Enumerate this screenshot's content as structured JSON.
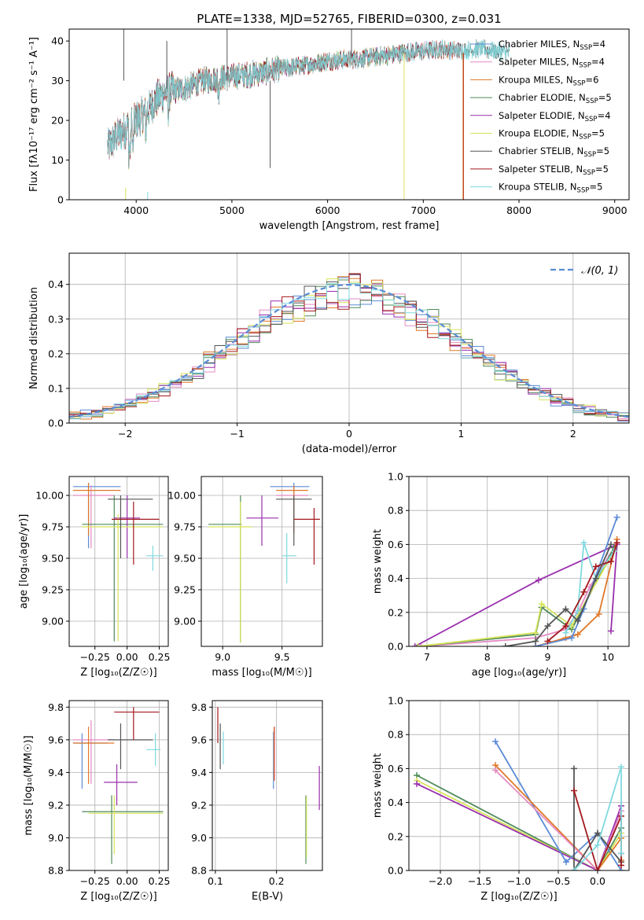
{
  "colors": {
    "chabrier_miles": "#5b8bd6",
    "salpeter_miles": "#e58bc3",
    "kroupa_miles": "#e07828",
    "chabrier_elodie": "#4f8a5a",
    "salpeter_elodie": "#9a2fae",
    "kroupa_elodie": "#d7e35a",
    "chabrier_stelib": "#555555",
    "salpeter_stelib": "#a3191e",
    "kroupa_stelib": "#7fd9de"
  },
  "chart_data": [
    {
      "id": "spectrum",
      "type": "line",
      "title": "PLATE=1338, MJD=52765, FIBERID=0300, z=0.031",
      "xlabel": "wavelength [Angstrom, rest frame]",
      "ylabel": "Flux [fλ10⁻¹⁷ erg cm⁻² s⁻¹ A⁻¹]",
      "xlim": [
        3300,
        9150
      ],
      "ylim": [
        0,
        43
      ],
      "xticks": [
        "4000",
        "5000",
        "6000",
        "7000",
        "8000",
        "9000"
      ],
      "yticks": [
        "0",
        "10",
        "20",
        "30",
        "40"
      ],
      "legend_position": "upper-right",
      "legend": [
        {
          "base": "Chabrier MILES, N",
          "sub": "SSP",
          "suffix": "=4",
          "color_key": "chabrier_miles"
        },
        {
          "base": "Salpeter MILES, N",
          "sub": "SSP",
          "suffix": "=4",
          "color_key": "salpeter_miles"
        },
        {
          "base": "Kroupa MILES, N",
          "sub": "SSP",
          "suffix": "=6",
          "color_key": "kroupa_miles"
        },
        {
          "base": "Chabrier ELODIE, N",
          "sub": "SSP",
          "suffix": "=5",
          "color_key": "chabrier_elodie"
        },
        {
          "base": "Salpeter ELODIE, N",
          "sub": "SSP",
          "suffix": "=4",
          "color_key": "salpeter_elodie"
        },
        {
          "base": "Kroupa ELODIE, N",
          "sub": "SSP",
          "suffix": "=5",
          "color_key": "kroupa_elodie"
        },
        {
          "base": "Chabrier STELIB, N",
          "sub": "SSP",
          "suffix": "=5",
          "color_key": "chabrier_stelib"
        },
        {
          "base": "Salpeter STELIB, N",
          "sub": "SSP",
          "suffix": "=5",
          "color_key": "salpeter_stelib"
        },
        {
          "base": "Kroupa STELIB, N",
          "sub": "SSP",
          "suffix": "=5",
          "color_key": "kroupa_stelib"
        }
      ],
      "continuum": {
        "x": [
          3700,
          3800,
          3900,
          4000,
          4100,
          4200,
          4300,
          4500,
          4700,
          5000,
          5300,
          5500,
          5800,
          6000,
          6300,
          6500,
          6800,
          7000,
          7200,
          7400,
          7600,
          7900
        ],
        "y": [
          13,
          16,
          18,
          20,
          22,
          25,
          27,
          28,
          30,
          31,
          32,
          33,
          34,
          35,
          35.5,
          36,
          37,
          37.5,
          38,
          37.5,
          38,
          37
        ]
      },
      "series_coverage": [
        {
          "color_key": "chabrier_miles",
          "x": [
            3700,
            7400
          ]
        },
        {
          "color_key": "salpeter_miles",
          "x": [
            3700,
            7400
          ]
        },
        {
          "color_key": "kroupa_miles",
          "x": [
            3700,
            7400
          ]
        },
        {
          "color_key": "chabrier_elodie",
          "x": [
            3900,
            6800
          ]
        },
        {
          "color_key": "salpeter_elodie",
          "x": [
            3900,
            6800
          ]
        },
        {
          "color_key": "kroupa_elodie",
          "x": [
            3900,
            6800
          ]
        },
        {
          "color_key": "chabrier_stelib",
          "x": [
            3700,
            7900
          ]
        },
        {
          "color_key": "salpeter_stelib",
          "x": [
            3700,
            7400
          ]
        },
        {
          "color_key": "kroupa_stelib",
          "x": [
            3700,
            7900
          ]
        }
      ]
    },
    {
      "id": "residuals",
      "type": "histogram",
      "xlabel": "(data-model)/error",
      "ylabel": "Normed distribution",
      "xlim": [
        -2.5,
        2.5
      ],
      "ylim": [
        0,
        0.49
      ],
      "xticks": [
        "−2",
        "−1",
        "0",
        "1",
        "2"
      ],
      "yticks": [
        "0.0",
        "0.1",
        "0.2",
        "0.3",
        "0.4"
      ],
      "legend_label": "𝒩(0, 1)",
      "legend_position": "upper-right",
      "bin_width": 0.1
    },
    {
      "id": "age_vs_z",
      "type": "errorbar",
      "xlabel": "Z [log₁₀(Z/Z☉)]",
      "ylabel": "age  [log₁₀(age/yr)]",
      "xlim": [
        -0.45,
        0.32
      ],
      "ylim": [
        8.8,
        10.15
      ],
      "xticks": [
        "−0.25",
        "0.00",
        "0.25"
      ],
      "yticks": [
        "9.00",
        "9.25",
        "9.50",
        "9.75",
        "10.00"
      ],
      "points": [
        {
          "k": "chabrier_miles",
          "x": -0.3,
          "xe": [
            -0.42,
            -0.05
          ],
          "y": 10.07,
          "ye": [
            9.58,
            10.1
          ]
        },
        {
          "k": "salpeter_miles",
          "x": -0.28,
          "xe": [
            -0.42,
            -0.1
          ],
          "y": 10.0,
          "ye": [
            9.58,
            10.08
          ]
        },
        {
          "k": "kroupa_miles",
          "x": -0.3,
          "xe": [
            -0.42,
            -0.05
          ],
          "y": 10.04,
          "ye": [
            9.68,
            10.1
          ]
        },
        {
          "k": "chabrier_elodie",
          "x": -0.1,
          "xe": [
            -0.35,
            0.28
          ],
          "y": 9.77,
          "ye": [
            8.84,
            10.0
          ]
        },
        {
          "k": "salpeter_elodie",
          "x": 0.0,
          "xe": [
            -0.1,
            0.1
          ],
          "y": 9.82,
          "ye": [
            9.5,
            10.0
          ]
        },
        {
          "k": "kroupa_elodie",
          "x": -0.07,
          "xe": [
            -0.35,
            0.28
          ],
          "y": 9.75,
          "ye": [
            8.84,
            9.85
          ]
        },
        {
          "k": "chabrier_stelib",
          "x": -0.05,
          "xe": [
            -0.15,
            0.2
          ],
          "y": 9.97,
          "ye": [
            9.5,
            10.0
          ]
        },
        {
          "k": "salpeter_stelib",
          "x": 0.05,
          "xe": [
            -0.12,
            0.25
          ],
          "y": 9.81,
          "ye": [
            9.45,
            9.95
          ]
        },
        {
          "k": "kroupa_stelib",
          "x": 0.2,
          "xe": [
            0.15,
            0.28
          ],
          "y": 9.52,
          "ye": [
            9.4,
            9.6
          ]
        }
      ]
    },
    {
      "id": "age_vs_mass",
      "type": "errorbar",
      "xlabel": "mass [log₁₀(M/M☉)]",
      "ylabel": "",
      "xlim": [
        8.82,
        9.84
      ],
      "ylim": [
        8.8,
        10.15
      ],
      "xticks": [
        "9.0",
        "9.5"
      ],
      "yticks": [
        "9.00",
        "9.25",
        "9.50",
        "9.75",
        "10.00"
      ],
      "points": [
        {
          "k": "chabrier_miles",
          "x": 9.6,
          "xe": [
            9.4,
            9.73
          ],
          "y": 10.07,
          "ye": [
            9.75,
            10.1
          ]
        },
        {
          "k": "salpeter_miles",
          "x": 9.6,
          "xe": [
            9.45,
            9.72
          ],
          "y": 10.0,
          "ye": [
            9.7,
            10.05
          ]
        },
        {
          "k": "kroupa_miles",
          "x": 9.6,
          "xe": [
            9.45,
            9.72
          ],
          "y": 10.04,
          "ye": [
            9.7,
            10.08
          ]
        },
        {
          "k": "chabrier_elodie",
          "x": 9.15,
          "xe": [
            8.88,
            9.16
          ],
          "y": 9.77,
          "ye": [
            8.83,
            10.0
          ]
        },
        {
          "k": "salpeter_elodie",
          "x": 9.33,
          "xe": [
            9.2,
            9.47
          ],
          "y": 9.82,
          "ye": [
            9.6,
            10.0
          ]
        },
        {
          "k": "kroupa_elodie",
          "x": 9.15,
          "xe": [
            8.88,
            9.25
          ],
          "y": 9.75,
          "ye": [
            8.83,
            9.95
          ]
        },
        {
          "k": "chabrier_stelib",
          "x": 9.6,
          "xe": [
            9.45,
            9.75
          ],
          "y": 9.97,
          "ye": [
            9.6,
            10.0
          ]
        },
        {
          "k": "salpeter_stelib",
          "x": 9.77,
          "xe": [
            9.6,
            9.82
          ],
          "y": 9.81,
          "ye": [
            9.45,
            9.9
          ]
        },
        {
          "k": "kroupa_stelib",
          "x": 9.54,
          "xe": [
            9.5,
            9.62
          ],
          "y": 9.52,
          "ye": [
            9.3,
            9.7
          ]
        }
      ]
    },
    {
      "id": "mass_weight_vs_age",
      "type": "line",
      "xlabel": "age  [log₁₀(age/yr)]",
      "ylabel": "mass weight",
      "xlim": [
        6.7,
        10.35
      ],
      "ylim": [
        0,
        1
      ],
      "xticks": [
        "7",
        "8",
        "9",
        "10"
      ],
      "yticks": [
        "0.0",
        "0.2",
        "0.4",
        "0.6",
        "0.8",
        "1.0"
      ],
      "series": [
        {
          "k": "salpeter_miles",
          "x": [
            6.9,
            8.8,
            9.3,
            9.5,
            9.7,
            10.1
          ],
          "y": [
            0.0,
            0.05,
            0.1,
            0.2,
            0.35,
            0.58
          ]
        },
        {
          "k": "salpeter_elodie",
          "x": [
            6.8,
            8.85,
            10.15,
            10.05
          ],
          "y": [
            0.0,
            0.39,
            0.6,
            0.09
          ]
        },
        {
          "k": "chabrier_elodie",
          "x": [
            6.85,
            8.8,
            8.9,
            9.4,
            10.1
          ],
          "y": [
            0.0,
            0.07,
            0.23,
            0.1,
            0.58
          ]
        },
        {
          "k": "kroupa_elodie",
          "x": [
            6.85,
            8.8,
            8.9,
            9.4,
            10.1
          ],
          "y": [
            0.0,
            0.08,
            0.25,
            0.12,
            0.56
          ]
        },
        {
          "k": "kroupa_miles",
          "x": [
            8.8,
            9.3,
            9.5,
            9.85,
            10.15
          ],
          "y": [
            0.0,
            0.05,
            0.07,
            0.19,
            0.63
          ]
        },
        {
          "k": "chabrier_miles",
          "x": [
            8.8,
            9.4,
            9.6,
            10.15
          ],
          "y": [
            0.0,
            0.05,
            0.22,
            0.76
          ]
        },
        {
          "k": "kroupa_stelib",
          "x": [
            9.3,
            9.5,
            9.6,
            9.8,
            10.1
          ],
          "y": [
            0.08,
            0.21,
            0.61,
            0.4,
            0.56
          ]
        },
        {
          "k": "salpeter_stelib",
          "x": [
            9.0,
            9.3,
            9.6,
            9.8,
            10.05,
            10.15
          ],
          "y": [
            0.03,
            0.12,
            0.32,
            0.47,
            0.5,
            0.61
          ]
        },
        {
          "k": "chabrier_stelib",
          "x": [
            8.3,
            8.8,
            9.0,
            9.3,
            9.5,
            9.8,
            10.05
          ],
          "y": [
            0.0,
            0.03,
            0.12,
            0.22,
            0.15,
            0.4,
            0.6
          ]
        }
      ]
    },
    {
      "id": "mass_vs_z",
      "type": "errorbar",
      "xlabel": "Z [log₁₀(Z/Z☉)]",
      "ylabel": "mass [log₁₀(M/M☉)]",
      "xlim": [
        -0.45,
        0.32
      ],
      "ylim": [
        8.8,
        9.84
      ],
      "xticks": [
        "−0.25",
        "0.00",
        "0.25"
      ],
      "yticks": [
        "8.8",
        "9.0",
        "9.2",
        "9.4",
        "9.6",
        "9.8"
      ],
      "points": [
        {
          "k": "chabrier_miles",
          "x": -0.35,
          "xe": [
            -0.42,
            -0.15
          ],
          "y": 9.58,
          "ye": [
            9.3,
            9.64
          ]
        },
        {
          "k": "salpeter_miles",
          "x": -0.28,
          "xe": [
            -0.42,
            -0.1
          ],
          "y": 9.6,
          "ye": [
            9.33,
            9.72
          ]
        },
        {
          "k": "kroupa_miles",
          "x": -0.3,
          "xe": [
            -0.42,
            -0.1
          ],
          "y": 9.58,
          "ye": [
            9.33,
            9.68
          ]
        },
        {
          "k": "chabrier_elodie",
          "x": -0.12,
          "xe": [
            -0.35,
            0.28
          ],
          "y": 9.16,
          "ye": [
            8.84,
            9.26
          ]
        },
        {
          "k": "salpeter_elodie",
          "x": -0.08,
          "xe": [
            -0.18,
            0.08
          ],
          "y": 9.34,
          "ye": [
            9.2,
            9.45
          ]
        },
        {
          "k": "kroupa_elodie",
          "x": -0.1,
          "xe": [
            -0.3,
            0.28
          ],
          "y": 9.15,
          "ye": [
            8.9,
            9.26
          ]
        },
        {
          "k": "chabrier_stelib",
          "x": -0.05,
          "xe": [
            -0.15,
            0.2
          ],
          "y": 9.6,
          "ye": [
            9.42,
            9.7
          ]
        },
        {
          "k": "salpeter_stelib",
          "x": 0.05,
          "xe": [
            -0.1,
            0.25
          ],
          "y": 9.77,
          "ye": [
            9.6,
            9.8
          ]
        },
        {
          "k": "kroupa_stelib",
          "x": 0.22,
          "xe": [
            0.15,
            0.26
          ],
          "y": 9.54,
          "ye": [
            9.44,
            9.64
          ]
        }
      ]
    },
    {
      "id": "mass_vs_ebv",
      "type": "errorbar",
      "xlabel": "E(B-V)",
      "ylabel": "",
      "xlim": [
        0.095,
        0.275
      ],
      "ylim": [
        8.8,
        9.84
      ],
      "xticks": [
        "0.1",
        "0.2"
      ],
      "yticks": [
        "8.8",
        "9.0",
        "9.2",
        "9.4",
        "9.6",
        "9.8"
      ],
      "points": [
        {
          "k": "chabrier_miles",
          "x": 0.195,
          "y": 9.4,
          "ye": [
            9.3,
            9.65
          ]
        },
        {
          "k": "salpeter_miles",
          "x": 0.197,
          "y": 9.5,
          "ye": [
            9.35,
            9.68
          ]
        },
        {
          "k": "kroupa_miles",
          "x": 0.196,
          "y": 9.5,
          "ye": [
            9.35,
            9.68
          ]
        },
        {
          "k": "chabrier_elodie",
          "x": 0.248,
          "y": 9.1,
          "ye": [
            8.84,
            9.26
          ]
        },
        {
          "k": "salpeter_elodie",
          "x": 0.27,
          "y": 9.3,
          "ye": [
            9.17,
            9.44
          ]
        },
        {
          "k": "kroupa_elodie",
          "x": 0.249,
          "y": 9.05,
          "ye": [
            8.88,
            9.25
          ]
        },
        {
          "k": "chabrier_stelib",
          "x": 0.108,
          "y": 9.55,
          "ye": [
            9.42,
            9.7
          ]
        },
        {
          "k": "salpeter_stelib",
          "x": 0.104,
          "y": 9.7,
          "ye": [
            9.58,
            9.8
          ]
        },
        {
          "k": "kroupa_stelib",
          "x": 0.113,
          "y": 9.55,
          "ye": [
            9.45,
            9.65
          ]
        }
      ]
    },
    {
      "id": "mass_weight_vs_z",
      "type": "line",
      "xlabel": "Z [log₁₀(Z/Z☉)]",
      "ylabel": "mass weight",
      "xlim": [
        -2.4,
        0.4
      ],
      "ylim": [
        0,
        1
      ],
      "xticks": [
        "−2.0",
        "−1.5",
        "−1.0",
        "−0.5",
        "0.0"
      ],
      "yticks": [
        "0.0",
        "0.2",
        "0.4",
        "0.6",
        "0.8",
        "1.0"
      ],
      "series": [
        {
          "k": "chabrier_elodie",
          "x": [
            -2.3,
            0.0,
            0.3,
            0.3
          ],
          "y": [
            0.56,
            0.0,
            0.25,
            0.05
          ]
        },
        {
          "k": "kroupa_elodie",
          "x": [
            -2.3,
            0.0,
            0.3,
            0.3
          ],
          "y": [
            0.53,
            0.0,
            0.22,
            0.05
          ]
        },
        {
          "k": "salpeter_elodie",
          "x": [
            -2.3,
            0.0,
            0.3,
            0.3
          ],
          "y": [
            0.51,
            0.0,
            0.38,
            0.1
          ]
        },
        {
          "k": "chabrier_miles",
          "x": [
            -1.3,
            -0.4,
            0.0,
            0.3
          ],
          "y": [
            0.76,
            0.05,
            0.22,
            0.0
          ]
        },
        {
          "k": "kroupa_miles",
          "x": [
            -1.3,
            0.0,
            0.3,
            0.3
          ],
          "y": [
            0.62,
            0.0,
            0.19,
            0.06
          ]
        },
        {
          "k": "salpeter_miles",
          "x": [
            -1.3,
            0.0,
            0.3
          ],
          "y": [
            0.59,
            0.0,
            0.35
          ]
        },
        {
          "k": "chabrier_stelib",
          "x": [
            -0.3,
            -0.3,
            0.0,
            0.3
          ],
          "y": [
            0.6,
            0.0,
            0.22,
            0.05
          ]
        },
        {
          "k": "salpeter_stelib",
          "x": [
            -0.3,
            0.0,
            0.3,
            0.3
          ],
          "y": [
            0.47,
            0.0,
            0.32,
            0.03
          ]
        },
        {
          "k": "kroupa_stelib",
          "x": [
            -0.3,
            0.0,
            0.3,
            0.3
          ],
          "y": [
            0.0,
            0.15,
            0.61,
            0.1
          ]
        }
      ]
    }
  ]
}
